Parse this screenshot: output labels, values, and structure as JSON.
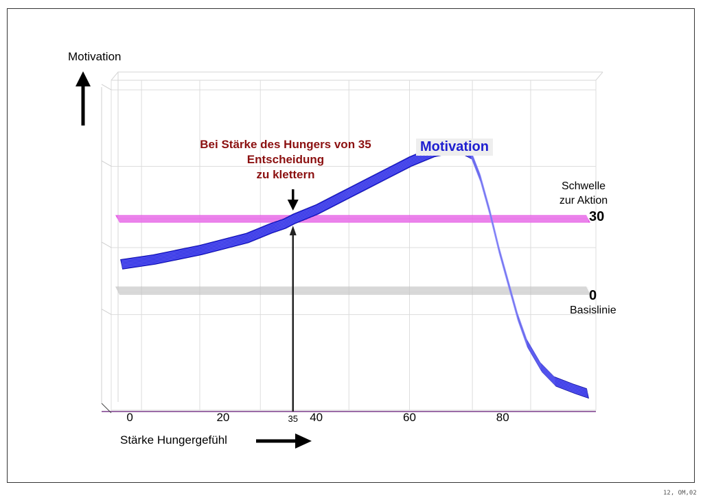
{
  "chart_data": {
    "type": "line",
    "xlabel": "Stärke Hungergefühl",
    "ylabel": "Motivation",
    "xlim": [
      -4,
      100
    ],
    "ylim": [
      -50,
      88
    ],
    "x_ticks": [
      {
        "value": 0,
        "label": "0"
      },
      {
        "value": 20,
        "label": "20"
      },
      {
        "value": 35,
        "label": "35"
      },
      {
        "value": 40,
        "label": "40"
      },
      {
        "value": 60,
        "label": "60"
      },
      {
        "value": 80,
        "label": "80"
      }
    ],
    "grid": true,
    "series": [
      {
        "name": "Motivation",
        "color": "#2a2ae0",
        "x": [
          -2,
          5,
          10,
          15,
          20,
          25,
          30,
          33,
          35,
          40,
          45,
          50,
          55,
          60,
          65,
          70,
          73,
          75,
          77,
          79,
          81,
          83,
          85,
          88,
          91,
          95,
          98
        ],
        "values": [
          11,
          13,
          15,
          17,
          19.5,
          22,
          26,
          28,
          30,
          34,
          39,
          44,
          49,
          54,
          58,
          60,
          57,
          47,
          33,
          17,
          3,
          -11,
          -22,
          -32,
          -38,
          -41,
          -43
        ]
      }
    ],
    "reference_lines": [
      {
        "label_lines": [
          "Schwelle",
          "zur Aktion"
        ],
        "value": 30,
        "value_label": "30",
        "color": "#e040e0"
      },
      {
        "label_lines": [
          "Basislinie"
        ],
        "value": 0,
        "value_label": "0",
        "color": "#b8b8b8"
      }
    ],
    "annotation": {
      "x": 35,
      "lines": [
        "Bei Stärke des Hungers von 35",
        "Entscheidung",
        "zu klettern"
      ],
      "color": "#8b1010"
    }
  },
  "footer_code": "12, OM,02"
}
